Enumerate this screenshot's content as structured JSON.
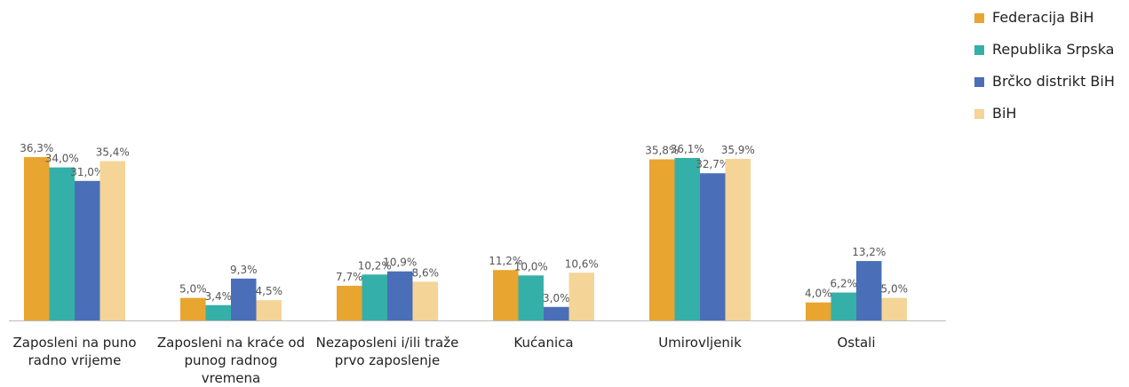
{
  "chart_data": {
    "type": "bar",
    "categories": [
      "Zaposleni na puno radno vrijeme",
      "Zaposleni na kraće od punog radnog vremena",
      "Nezaposleni i/ili traže prvo zaposlenje",
      "Kućanica",
      "Umirovljenik",
      "Ostali"
    ],
    "series": [
      {
        "name": "Federacija BiH",
        "color": "#e8a530",
        "values": [
          36.3,
          5.0,
          7.7,
          11.2,
          35.8,
          4.0
        ],
        "value_labels": [
          "36,3%",
          "5,0%",
          "7,7%",
          "11,2%",
          "35,8%",
          "4,0%"
        ]
      },
      {
        "name": "Republika Srpska",
        "color": "#35b0a8",
        "values": [
          34.0,
          3.4,
          10.2,
          10.0,
          36.1,
          6.2
        ],
        "value_labels": [
          "34,0%",
          "3,4%",
          "10,2%",
          "10,0%",
          "36,1%",
          "6,2%"
        ]
      },
      {
        "name": "Brčko distrikt BiH",
        "color": "#4a6fb8",
        "values": [
          31.0,
          9.3,
          10.9,
          3.0,
          32.7,
          13.2
        ],
        "value_labels": [
          "31,0%",
          "9,3%",
          "10,9%",
          "3,0%",
          "32,7%",
          "13,2%"
        ]
      },
      {
        "name": "BiH",
        "color": "#f4d497",
        "values": [
          35.4,
          4.5,
          8.6,
          10.6,
          35.9,
          5.0
        ],
        "value_labels": [
          "35,4%",
          "4,5%",
          "8,6%",
          "10,6%",
          "35,9%",
          "5,0%"
        ]
      }
    ],
    "legend": "top-right"
  }
}
